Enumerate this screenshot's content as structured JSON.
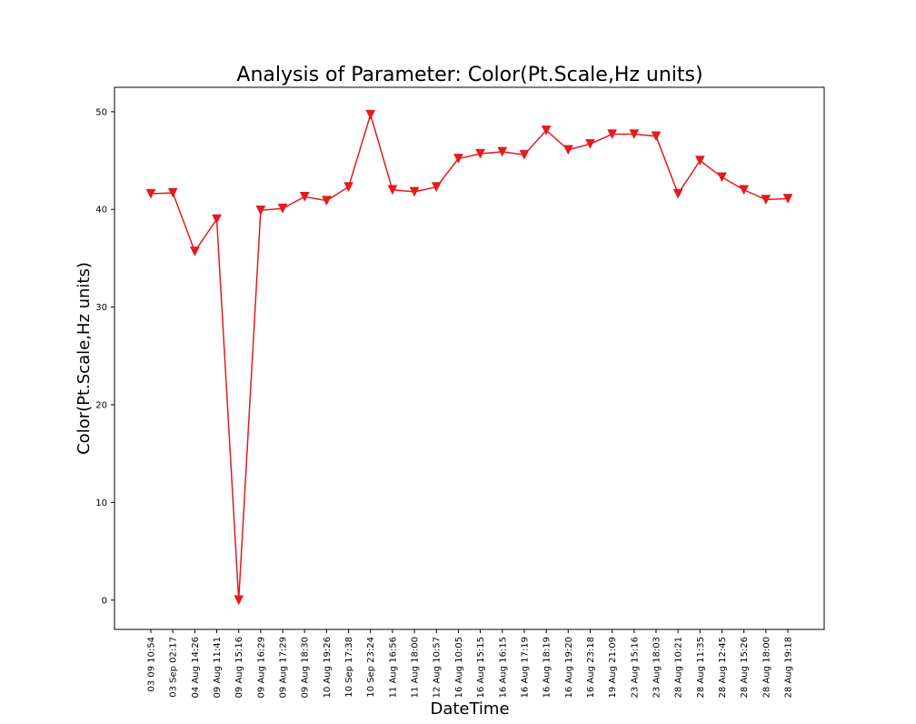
{
  "chart_data": {
    "type": "line",
    "title": "Analysis of Parameter: Color(Pt.Scale,Hz units)",
    "xlabel": "DateTime",
    "ylabel": "Color(Pt.Scale,Hz units)",
    "ylim": [
      -3,
      52.5
    ],
    "yticks": [
      0,
      10,
      20,
      30,
      40,
      50
    ],
    "grid": false,
    "legend": "none",
    "colors": {
      "series": "#e41a1c",
      "axes": "#000000",
      "background": "#ffffff"
    },
    "marker": "triangle-down",
    "categories": [
      "03 09 10:54",
      "03 Sep 02:17",
      "04 Aug 14:26",
      "09 Aug 11:41",
      "09 Aug 15:16",
      "09 Aug 16:29",
      "09 Aug 17:29",
      "09 Aug 18:30",
      "10 Aug 19:26",
      "10 Sep 17:38",
      "10 Sep 23:24",
      "11 Aug 16:56",
      "11 Aug 18:00",
      "12 Aug 10:57",
      "16 Aug 10:05",
      "16 Aug 15:15",
      "16 Aug 16:15",
      "16 Aug 17:19",
      "16 Aug 18:19",
      "16 Aug 19:20",
      "16 Aug 23:18",
      "19 Aug 21:09",
      "23 Aug 15:16",
      "23 Aug 18:03",
      "28 Aug 10:21",
      "28 Aug 11:35",
      "28 Aug 12:45",
      "28 Aug 15:26",
      "28 Aug 18:00",
      "28 Aug 19:18"
    ],
    "series": [
      {
        "values": [
          41.6,
          41.7,
          35.7,
          39.0,
          0.0,
          39.9,
          40.1,
          41.3,
          40.9,
          42.3,
          49.7,
          42.0,
          41.8,
          42.3,
          45.2,
          45.7,
          45.9,
          45.6,
          48.1,
          46.1,
          46.7,
          47.7,
          47.7,
          47.5,
          41.6,
          45.0,
          43.3,
          42.0,
          41.0,
          41.1
        ]
      }
    ]
  }
}
